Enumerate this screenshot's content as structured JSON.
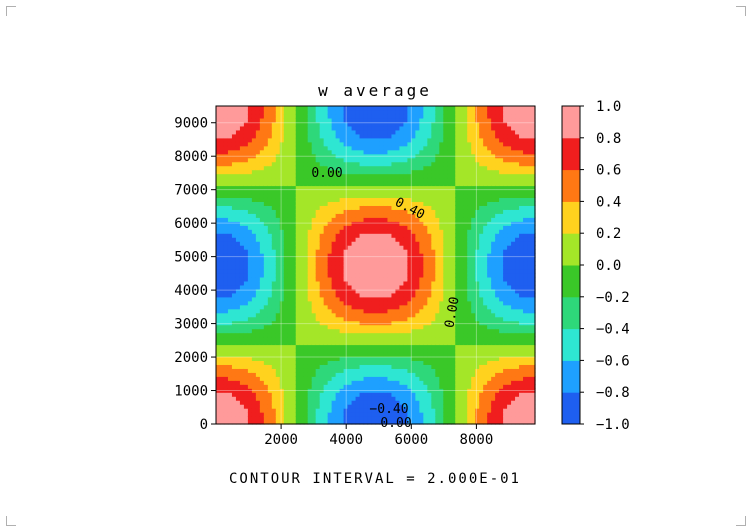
{
  "chart_data": {
    "type": "heatmap",
    "title": "w average",
    "footer": "CONTOUR INTERVAL = 2.000E-01",
    "xlim": [
      0,
      9800
    ],
    "ylim": [
      0,
      9500
    ],
    "x_ticks": [
      2000,
      4000,
      6000,
      8000
    ],
    "x_tick_labels": [
      "2000",
      "4000",
      "6000",
      "8000"
    ],
    "y_ticks": [
      0,
      1000,
      2000,
      3000,
      4000,
      5000,
      6000,
      7000,
      8000,
      9000
    ],
    "y_tick_labels": [
      "0",
      "1000",
      "2000",
      "3000",
      "4000",
      "5000",
      "6000",
      "7000",
      "8000",
      "9000"
    ],
    "colorbar": {
      "levels": [
        -1.0,
        -0.8,
        -0.6,
        -0.4,
        -0.2,
        0.0,
        0.2,
        0.4,
        0.6,
        0.8,
        1.0
      ],
      "labels": [
        "1.0",
        "0.8",
        "0.6",
        "0.4",
        "0.2",
        "0.0",
        "−0.2",
        "−0.4",
        "−0.6",
        "−0.8",
        "−1.0"
      ],
      "colors": [
        "#1e5ff0",
        "#1ea0ff",
        "#2ee6d2",
        "#2ed87a",
        "#3ac828",
        "#a4e628",
        "#ffd21e",
        "#ff7814",
        "#f01e1e",
        "#ff9a9a"
      ]
    },
    "contour_labels": [
      "0.00",
      "0.40",
      "0.00",
      "−0.40",
      "0.00"
    ],
    "field": {
      "description_free": true,
      "amplitude": 1.0,
      "wavelength_x": 9800,
      "wavelength_y": 9500,
      "phase_center_x": 4900,
      "phase_center_y": 4750,
      "extremes": [
        {
          "x": 4900,
          "y": 4750,
          "value": 1.0
        },
        {
          "x": 0,
          "y": 4750,
          "value": -1.0
        },
        {
          "x": 4900,
          "y": 0,
          "value": -0.8
        },
        {
          "x": 0,
          "y": 0,
          "value": 0.8
        }
      ]
    }
  }
}
